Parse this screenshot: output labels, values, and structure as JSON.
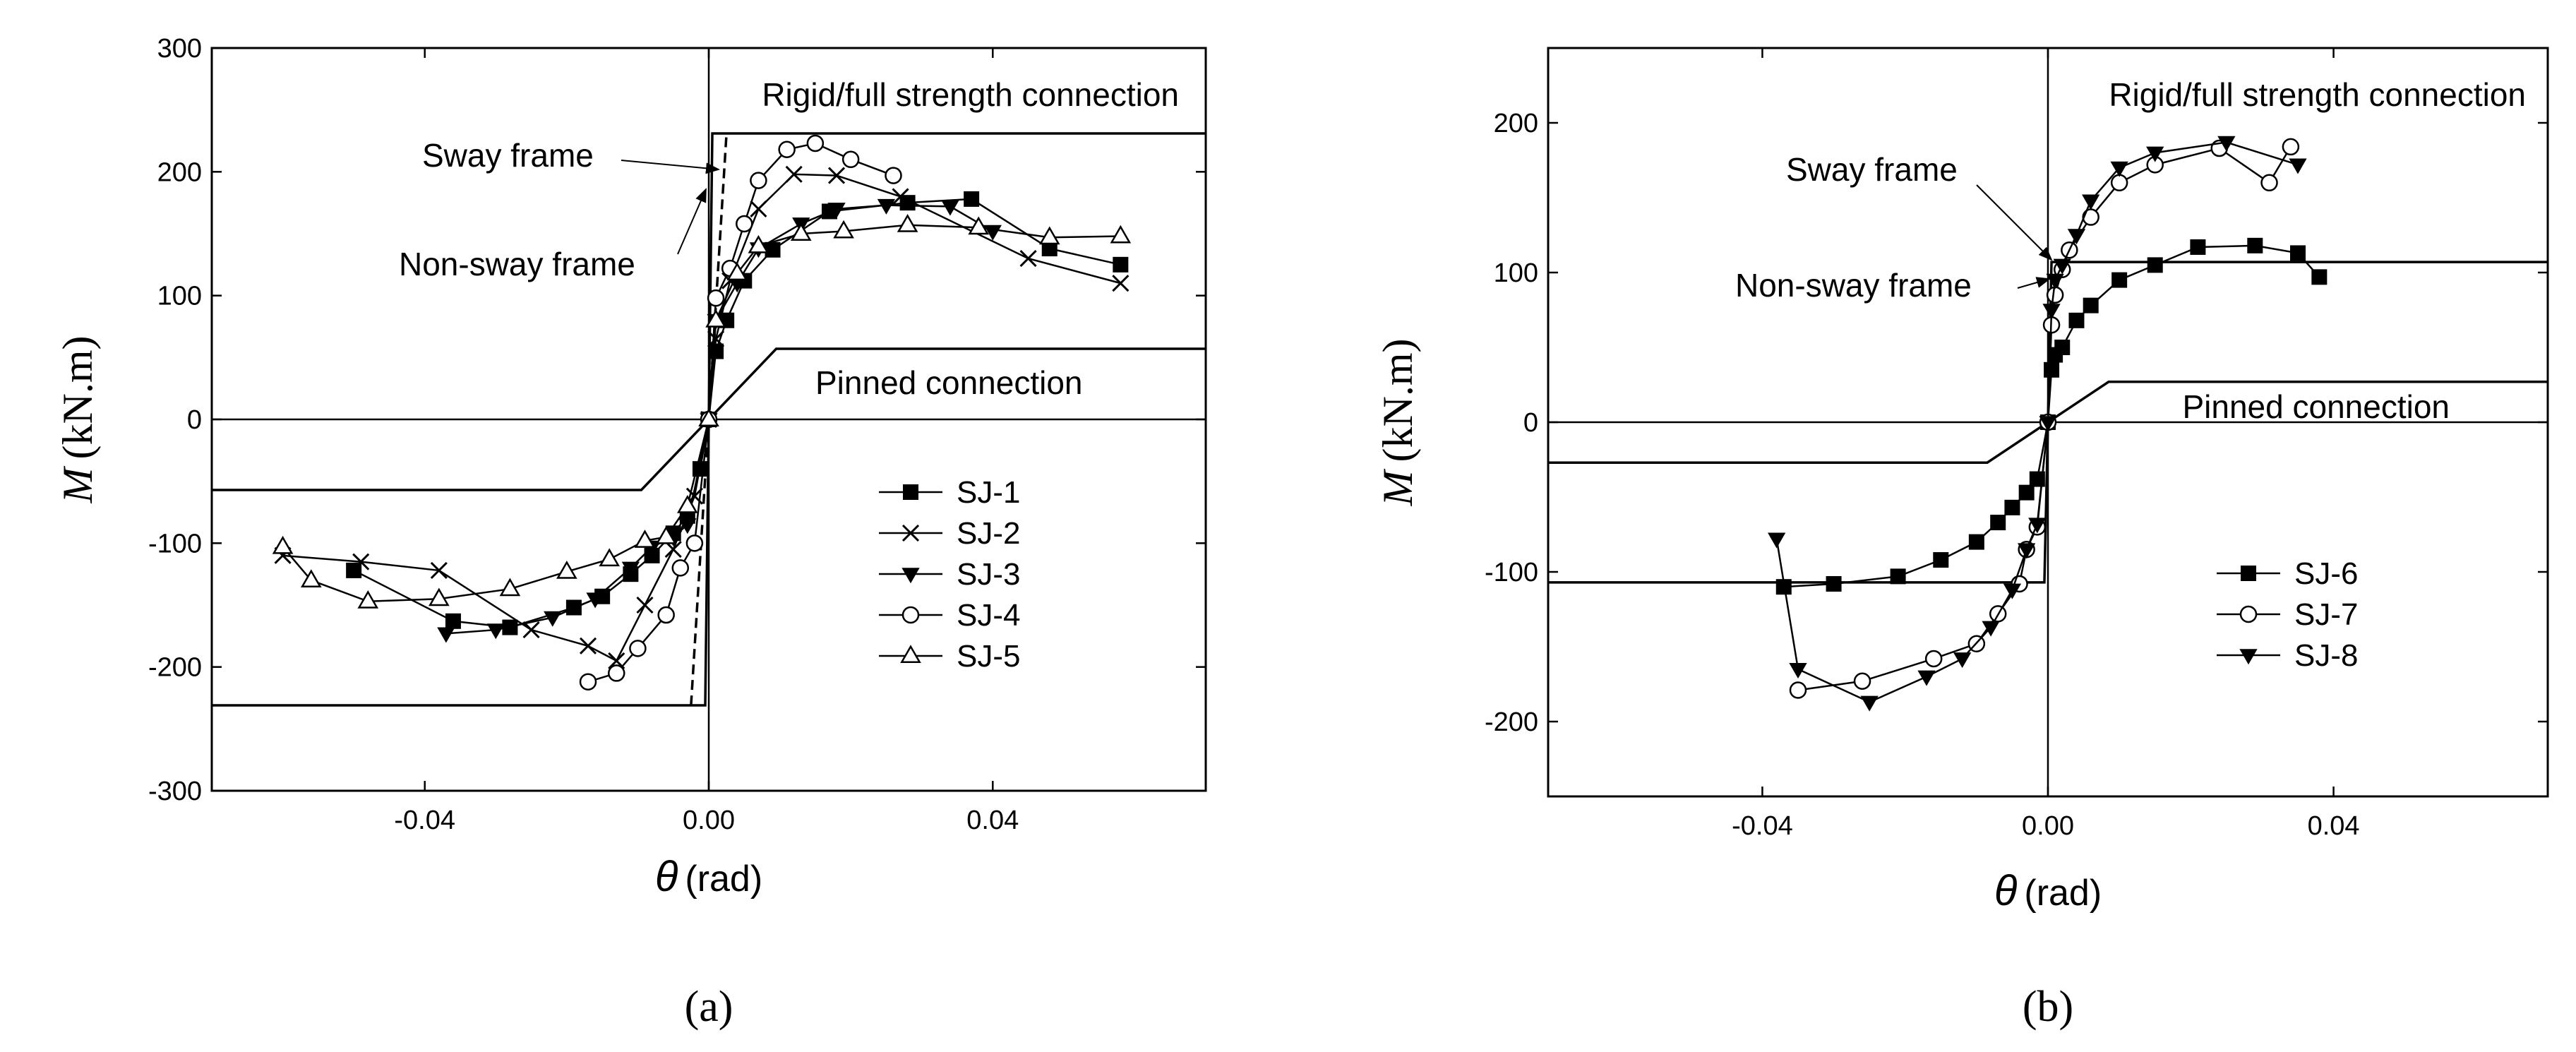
{
  "figure": {
    "panel_labels": [
      "(a)",
      "(b)"
    ]
  },
  "colors": {
    "ink": "#000000",
    "open": "#ffffff",
    "background": "#ffffff"
  },
  "chart_data": [
    {
      "type": "line",
      "panel": "(a)",
      "xlabel_symbol": "θ",
      "xlabel_unit": "(rad)",
      "ylabel_symbol": "M",
      "ylabel_unit": "(kN.m)",
      "xlim": [
        -0.07,
        0.07
      ],
      "ylim": [
        -300,
        300
      ],
      "xticks": [
        -0.04,
        0.0,
        0.04
      ],
      "xtick_labels": [
        "-0.04",
        "0.00",
        "0.04"
      ],
      "yticks": [
        -300,
        -200,
        -100,
        0,
        100,
        200,
        300
      ],
      "ytick_labels": [
        "-300",
        "-200",
        "-100",
        "0",
        "100",
        "200",
        "300"
      ],
      "boundaries": {
        "rigid": {
          "label": "Rigid/full strength connection",
          "x": [
            -0.07,
            -0.0005,
            0.0005,
            0.07
          ],
          "y": [
            -231,
            -231,
            231,
            231
          ]
        },
        "pinned": {
          "label": "Pinned connection",
          "x": [
            -0.07,
            -0.0095,
            0.0095,
            0.07
          ],
          "y": [
            -57,
            -57,
            57,
            57
          ]
        },
        "sway": {
          "label": "Sway frame",
          "x": [
            -0.0025,
            0.0025
          ],
          "y": [
            -231,
            231
          ]
        },
        "nonsway_label": "Non-sway frame"
      },
      "series": [
        {
          "name": "SJ-1",
          "marker": "square-filled",
          "x": [
            -0.05,
            -0.036,
            -0.028,
            -0.019,
            -0.015,
            -0.011,
            -0.008,
            -0.005,
            -0.003,
            -0.0012,
            0,
            0.001,
            0.0025,
            0.005,
            0.009,
            0.017,
            0.028,
            0.037,
            0.048,
            0.058
          ],
          "y": [
            -122,
            -163,
            -168,
            -152,
            -143,
            -125,
            -110,
            -92,
            -78,
            -40,
            0,
            55,
            80,
            112,
            137,
            168,
            175,
            178,
            138,
            125
          ]
        },
        {
          "name": "SJ-2",
          "marker": "x",
          "x": [
            -0.06,
            -0.049,
            -0.038,
            -0.025,
            -0.017,
            -0.013,
            -0.009,
            -0.005,
            -0.002,
            0,
            0.001,
            0.003,
            0.007,
            0.012,
            0.018,
            0.027,
            0.045,
            0.058
          ],
          "y": [
            -110,
            -115,
            -122,
            -170,
            -183,
            -195,
            -150,
            -105,
            -62,
            0,
            65,
            112,
            170,
            198,
            197,
            180,
            130,
            110
          ]
        },
        {
          "name": "SJ-3",
          "marker": "triangle-down-filled",
          "x": [
            -0.037,
            -0.03,
            -0.022,
            -0.016,
            -0.011,
            -0.008,
            -0.005,
            -0.003,
            0,
            0.001,
            0.004,
            0.007,
            0.013,
            0.018,
            0.025,
            0.034,
            0.04
          ],
          "y": [
            -173,
            -170,
            -160,
            -145,
            -120,
            -103,
            -95,
            -85,
            0,
            80,
            110,
            138,
            158,
            170,
            173,
            172,
            152
          ]
        },
        {
          "name": "SJ-4",
          "marker": "circle-open",
          "x": [
            -0.017,
            -0.013,
            -0.01,
            -0.006,
            -0.004,
            -0.002,
            0,
            0.001,
            0.003,
            0.005,
            0.007,
            0.011,
            0.015,
            0.02,
            0.026
          ],
          "y": [
            -212,
            -205,
            -185,
            -158,
            -120,
            -100,
            0,
            98,
            122,
            158,
            193,
            218,
            223,
            210,
            197
          ]
        },
        {
          "name": "SJ-5",
          "marker": "triangle-up-open",
          "x": [
            -0.06,
            -0.056,
            -0.048,
            -0.038,
            -0.028,
            -0.02,
            -0.014,
            -0.009,
            -0.006,
            -0.003,
            0,
            0.001,
            0.004,
            0.007,
            0.013,
            0.019,
            0.028,
            0.038,
            0.048,
            0.058
          ],
          "y": [
            -103,
            -130,
            -147,
            -145,
            -137,
            -123,
            -113,
            -98,
            -95,
            -70,
            0,
            80,
            118,
            140,
            150,
            152,
            157,
            155,
            147,
            148
          ]
        }
      ],
      "legend_position": "center-right"
    },
    {
      "type": "line",
      "panel": "(b)",
      "xlabel_symbol": "θ",
      "xlabel_unit": "(rad)",
      "ylabel_symbol": "M",
      "ylabel_unit": "(kN.m)",
      "xlim": [
        -0.07,
        0.07
      ],
      "ylim": [
        -250,
        250
      ],
      "xticks": [
        -0.04,
        0.0,
        0.04
      ],
      "xtick_labels": [
        "-0.04",
        "0.00",
        "0.04"
      ],
      "yticks": [
        -200,
        -100,
        0,
        100,
        200
      ],
      "ytick_labels": [
        "-200",
        "-100",
        "0",
        "100",
        "200"
      ],
      "boundaries": {
        "rigid": {
          "label": "Rigid/full strength connection",
          "x": [
            -0.07,
            -0.0005,
            0.0005,
            0.07
          ],
          "y": [
            -107,
            -107,
            107,
            107
          ]
        },
        "pinned": {
          "label": "Pinned connection",
          "x": [
            -0.07,
            -0.0085,
            0.0085,
            0.07
          ],
          "y": [
            -27,
            -27,
            27,
            27
          ]
        },
        "sway": {
          "label": "Sway frame"
        },
        "nonsway_label": "Non-sway frame"
      },
      "series": [
        {
          "name": "SJ-6",
          "marker": "square-filled",
          "x": [
            -0.037,
            -0.03,
            -0.021,
            -0.015,
            -0.01,
            -0.007,
            -0.005,
            -0.003,
            -0.0015,
            0,
            0.0005,
            0.001,
            0.002,
            0.004,
            0.006,
            0.01,
            0.015,
            0.021,
            0.029,
            0.035,
            0.038
          ],
          "y": [
            -110,
            -108,
            -103,
            -92,
            -80,
            -67,
            -57,
            -47,
            -38,
            0,
            35,
            45,
            50,
            68,
            78,
            95,
            105,
            117,
            118,
            113,
            97
          ]
        },
        {
          "name": "SJ-7",
          "marker": "circle-open",
          "x": [
            -0.035,
            -0.026,
            -0.016,
            -0.01,
            -0.007,
            -0.004,
            -0.003,
            -0.0015,
            0,
            0.0005,
            0.001,
            0.002,
            0.003,
            0.006,
            0.01,
            0.015,
            0.024,
            0.031,
            0.034
          ],
          "y": [
            -179,
            -173,
            -158,
            -148,
            -128,
            -108,
            -85,
            -70,
            0,
            65,
            85,
            102,
            115,
            137,
            160,
            172,
            183,
            160,
            184
          ]
        },
        {
          "name": "SJ-8",
          "marker": "triangle-down-filled",
          "x": [
            -0.038,
            -0.035,
            -0.025,
            -0.017,
            -0.012,
            -0.008,
            -0.005,
            -0.003,
            -0.0015,
            0,
            0.0005,
            0.001,
            0.002,
            0.004,
            0.006,
            0.01,
            0.015,
            0.025,
            0.035
          ],
          "y": [
            -78,
            -165,
            -187,
            -170,
            -158,
            -137,
            -112,
            -85,
            -68,
            0,
            75,
            95,
            105,
            125,
            148,
            170,
            180,
            187,
            172
          ]
        }
      ],
      "legend_position": "center-right"
    }
  ]
}
